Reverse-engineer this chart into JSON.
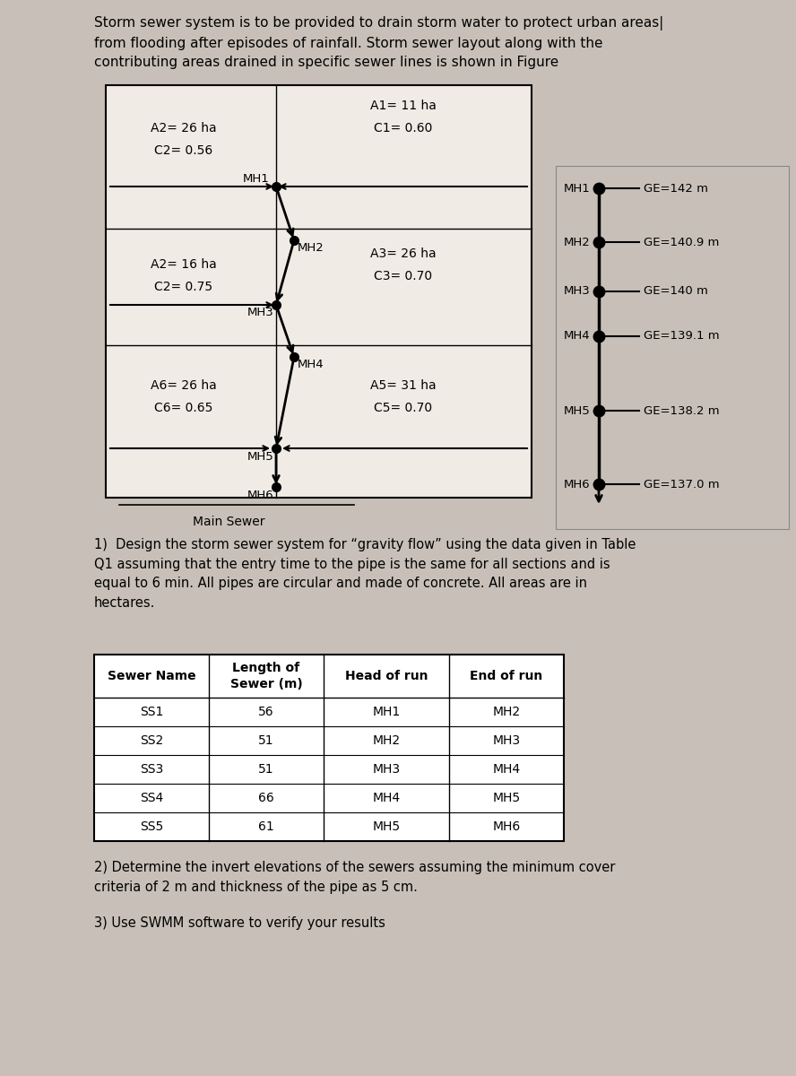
{
  "title_text": "Storm sewer system is to be provided to drain storm water to protect urban areas|\nfrom flooding after episodes of rainfall. Storm sewer layout along with the\ncontributing areas drained in specific sewer lines is shown in Figure",
  "bg_color": "#c8c0b8",
  "box_bg": "#f0ebe5",
  "question1": "1)  Design the storm sewer system for “gravity flow” using the data given in Table\nQ1 assuming that the entry time to the pipe is the same for all sections and is\nequal to 6 min. All pipes are circular and made of concrete. All areas are in\nhectares.",
  "question2": "2) Determine the invert elevations of the sewers assuming the minimum cover\ncriteria of 2 m and thickness of the pipe as 5 cm.",
  "question3": "3) Use SWMM software to verify your results",
  "ge_labels": [
    "GE=142 m",
    "GE=140.9 m",
    "GE=140 m",
    "GE=139.1 m",
    "GE=138.2 m",
    "GE=137.0 m"
  ],
  "table_headers": [
    "Sewer Name",
    "Length of\nSewer (m)",
    "Head of run",
    "End of run"
  ],
  "table_rows": [
    [
      "SS1",
      "56",
      "MH1",
      "MH2"
    ],
    [
      "SS2",
      "51",
      "MH2",
      "MH3"
    ],
    [
      "SS3",
      "51",
      "MH3",
      "MH4"
    ],
    [
      "SS4",
      "66",
      "MH4",
      "MH5"
    ],
    [
      "SS5",
      "61",
      "MH5",
      "MH6"
    ]
  ]
}
